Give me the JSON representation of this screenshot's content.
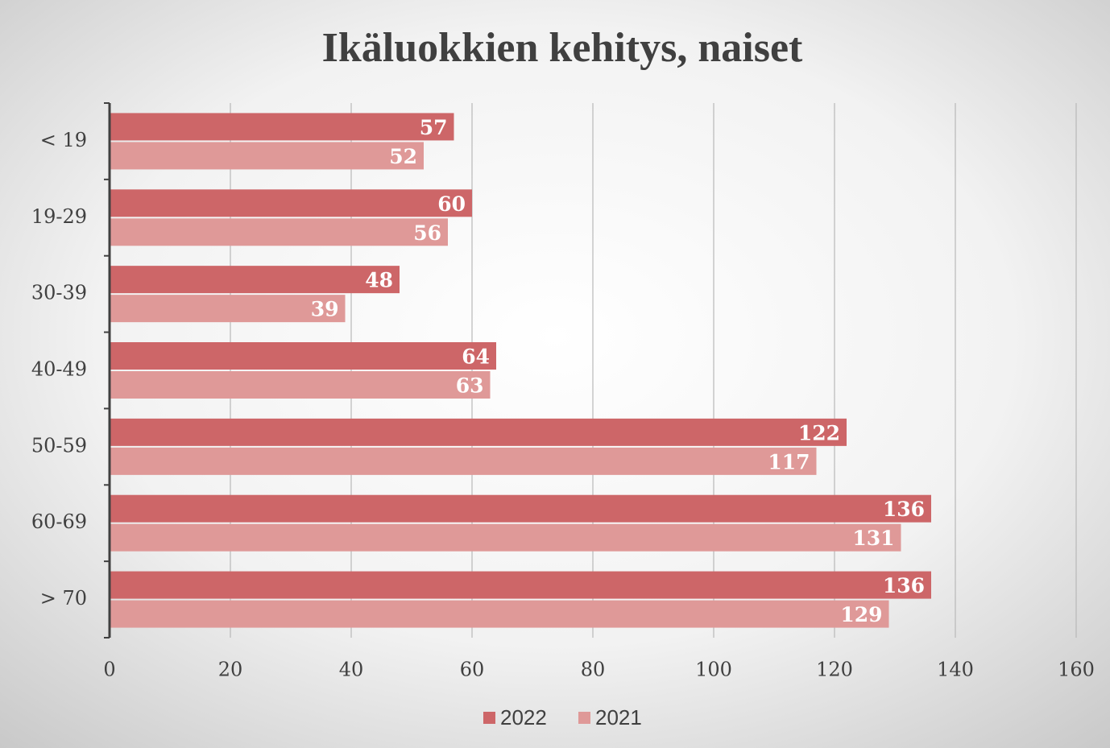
{
  "chart_data": {
    "type": "hbar",
    "title": "Ikäluokkien kehitys, naiset",
    "categories": [
      "< 19",
      "19-29",
      "30-39",
      "40-49",
      "50-59",
      "60-69",
      "> 70"
    ],
    "series": [
      {
        "name": "2022",
        "color": "#cd6668",
        "values": [
          57,
          60,
          48,
          64,
          122,
          136,
          136
        ]
      },
      {
        "name": "2021",
        "color": "#df9998",
        "values": [
          52,
          56,
          39,
          63,
          117,
          131,
          129
        ]
      }
    ],
    "xlim": [
      0,
      160
    ],
    "xticks": [
      0,
      20,
      40,
      60,
      80,
      100,
      120,
      140,
      160
    ],
    "grid": true,
    "legend": "bottom"
  }
}
